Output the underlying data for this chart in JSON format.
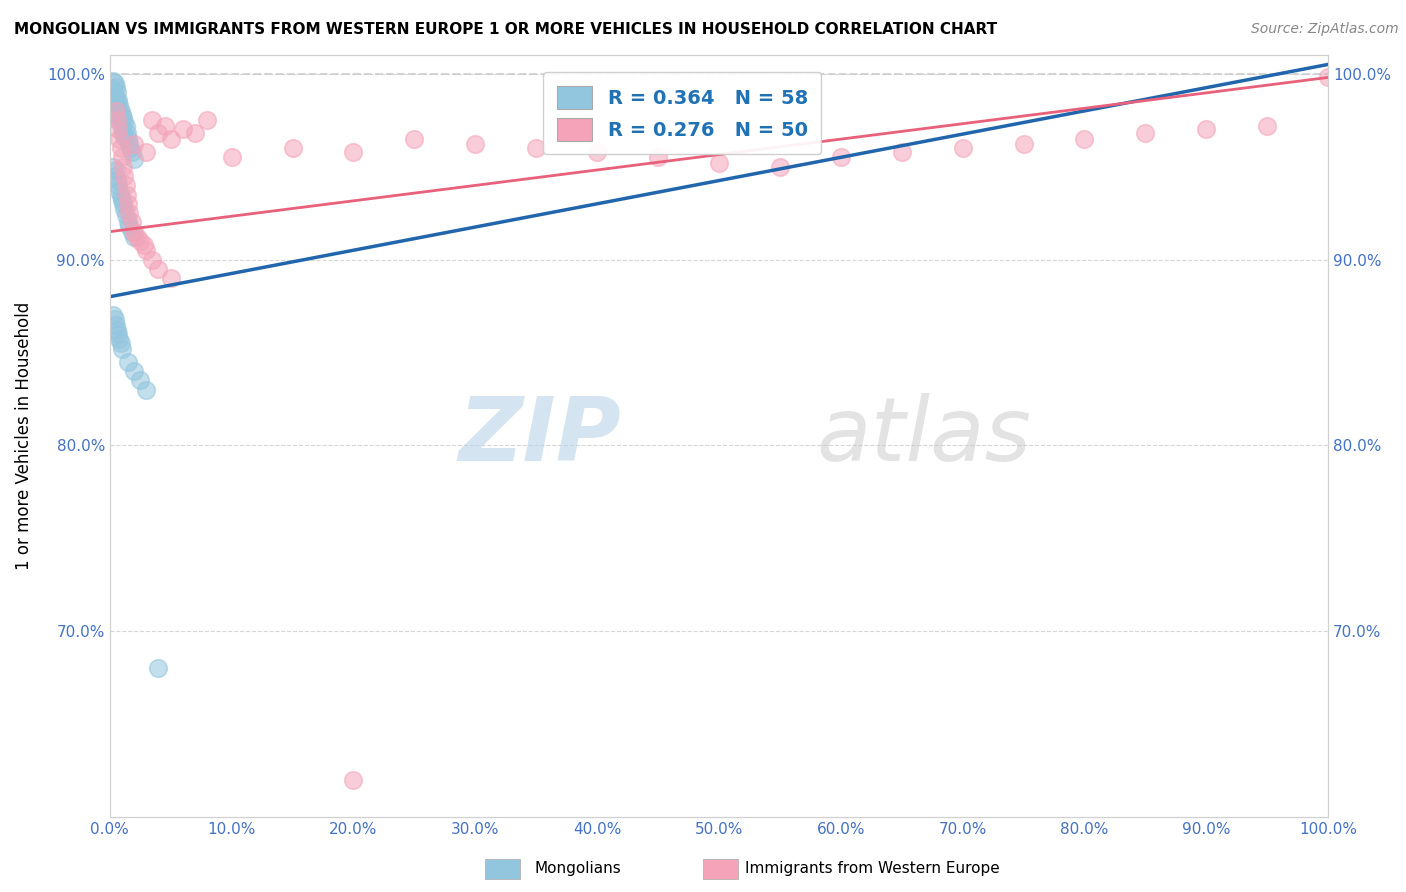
{
  "title": "MONGOLIAN VS IMMIGRANTS FROM WESTERN EUROPE 1 OR MORE VEHICLES IN HOUSEHOLD CORRELATION CHART",
  "source": "Source: ZipAtlas.com",
  "ylabel": "1 or more Vehicles in Household",
  "xlim": [
    0.0,
    1.0
  ],
  "ylim": [
    0.6,
    1.01
  ],
  "xticks": [
    0.0,
    0.1,
    0.2,
    0.3,
    0.4,
    0.5,
    0.6,
    0.7,
    0.8,
    0.9,
    1.0
  ],
  "xticklabels": [
    "0.0%",
    "10.0%",
    "20.0%",
    "30.0%",
    "40.0%",
    "50.0%",
    "60.0%",
    "70.0%",
    "80.0%",
    "90.0%",
    "100.0%"
  ],
  "yticks": [
    0.7,
    0.8,
    0.9,
    1.0
  ],
  "yticklabels": [
    "70.0%",
    "80.0%",
    "90.0%",
    "100.0%"
  ],
  "watermark_zip": "ZIP",
  "watermark_atlas": "atlas",
  "legend_labels": [
    "Mongolians",
    "Immigrants from Western Europe"
  ],
  "blue_color": "#92c5de",
  "pink_color": "#f4a3b8",
  "blue_line_color": "#2166ac",
  "pink_line_color": "#e8607a",
  "R_blue": 0.364,
  "N_blue": 58,
  "R_pink": 0.276,
  "N_pink": 50,
  "blue_x": [
    0.003,
    0.003,
    0.004,
    0.004,
    0.004,
    0.005,
    0.005,
    0.005,
    0.006,
    0.006,
    0.006,
    0.007,
    0.007,
    0.008,
    0.008,
    0.009,
    0.009,
    0.01,
    0.01,
    0.011,
    0.011,
    0.012,
    0.012,
    0.013,
    0.014,
    0.015,
    0.016,
    0.017,
    0.018,
    0.02,
    0.003,
    0.004,
    0.005,
    0.006,
    0.007,
    0.008,
    0.009,
    0.01,
    0.011,
    0.012,
    0.013,
    0.015,
    0.016,
    0.018,
    0.02,
    0.003,
    0.004,
    0.005,
    0.006,
    0.007,
    0.008,
    0.009,
    0.01,
    0.015,
    0.02,
    0.025,
    0.03,
    0.04
  ],
  "blue_y": [
    0.996,
    0.992,
    0.995,
    0.988,
    0.984,
    0.993,
    0.987,
    0.981,
    0.99,
    0.983,
    0.978,
    0.986,
    0.98,
    0.983,
    0.975,
    0.98,
    0.974,
    0.978,
    0.971,
    0.976,
    0.968,
    0.974,
    0.966,
    0.972,
    0.968,
    0.965,
    0.962,
    0.96,
    0.958,
    0.954,
    0.95,
    0.945,
    0.948,
    0.943,
    0.94,
    0.937,
    0.934,
    0.932,
    0.93,
    0.927,
    0.924,
    0.92,
    0.918,
    0.915,
    0.912,
    0.87,
    0.868,
    0.865,
    0.862,
    0.86,
    0.857,
    0.855,
    0.852,
    0.845,
    0.84,
    0.835,
    0.83,
    0.68
  ],
  "pink_x": [
    0.02,
    0.03,
    0.035,
    0.04,
    0.045,
    0.05,
    0.06,
    0.07,
    0.08,
    0.1,
    0.15,
    0.2,
    0.25,
    0.3,
    0.35,
    0.4,
    0.45,
    0.5,
    0.55,
    0.6,
    0.65,
    0.7,
    0.75,
    0.8,
    0.85,
    0.9,
    0.95,
    1.0,
    0.005,
    0.006,
    0.007,
    0.008,
    0.009,
    0.01,
    0.011,
    0.012,
    0.013,
    0.014,
    0.015,
    0.016,
    0.018,
    0.02,
    0.022,
    0.025,
    0.028,
    0.03,
    0.035,
    0.04,
    0.05,
    0.2
  ],
  "pink_y": [
    0.962,
    0.958,
    0.975,
    0.968,
    0.972,
    0.965,
    0.97,
    0.968,
    0.975,
    0.955,
    0.96,
    0.958,
    0.965,
    0.962,
    0.96,
    0.958,
    0.955,
    0.952,
    0.95,
    0.955,
    0.958,
    0.96,
    0.962,
    0.965,
    0.968,
    0.97,
    0.972,
    0.998,
    0.98,
    0.975,
    0.97,
    0.965,
    0.96,
    0.955,
    0.95,
    0.945,
    0.94,
    0.935,
    0.93,
    0.925,
    0.92,
    0.915,
    0.912,
    0.91,
    0.908,
    0.905,
    0.9,
    0.895,
    0.89,
    0.62
  ],
  "blue_trendline_x": [
    0.0,
    1.0
  ],
  "blue_trendline_y": [
    0.88,
    1.005
  ],
  "pink_trendline_x": [
    0.0,
    1.0
  ],
  "pink_trendline_y": [
    0.915,
    0.998
  ]
}
